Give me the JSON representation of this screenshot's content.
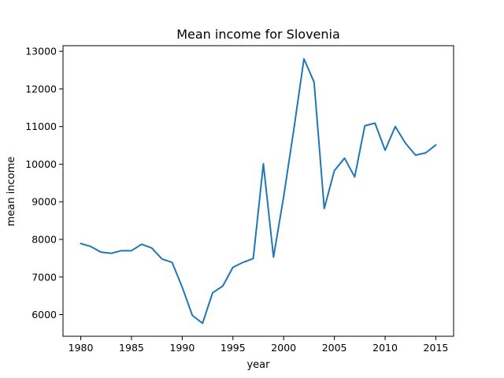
{
  "chart_data": {
    "type": "line",
    "title": "Mean income for Slovenia",
    "xlabel": "year",
    "ylabel": "mean income",
    "xlim": [
      1978.25,
      2016.75
    ],
    "ylim": [
      5425,
      13150
    ],
    "grid": false,
    "x_ticks": [
      1980,
      1985,
      1990,
      1995,
      2000,
      2005,
      2010,
      2015
    ],
    "y_ticks": [
      6000,
      7000,
      8000,
      9000,
      10000,
      11000,
      12000,
      13000
    ],
    "line_color": "#1f77b4",
    "series": [
      {
        "x": [
          1980,
          1981,
          1982,
          1983,
          1984,
          1985,
          1986,
          1987,
          1988,
          1989,
          1990,
          1991,
          1992,
          1993,
          1994,
          1995,
          1996,
          1997,
          1998,
          1999,
          2000,
          2001,
          2002,
          2003,
          2004,
          2005,
          2006,
          2007,
          2008,
          2009,
          2010,
          2011,
          2012,
          2013,
          2014,
          2015
        ],
        "values": [
          7890,
          7810,
          7660,
          7630,
          7700,
          7700,
          7870,
          7770,
          7480,
          7390,
          6730,
          5980,
          5770,
          6580,
          6760,
          7260,
          7390,
          7490,
          10010,
          7530,
          9140,
          10920,
          12800,
          12180,
          8820,
          9830,
          10160,
          9660,
          11020,
          11090,
          10370,
          11000,
          10560,
          10240,
          10300,
          10510
        ]
      }
    ]
  }
}
